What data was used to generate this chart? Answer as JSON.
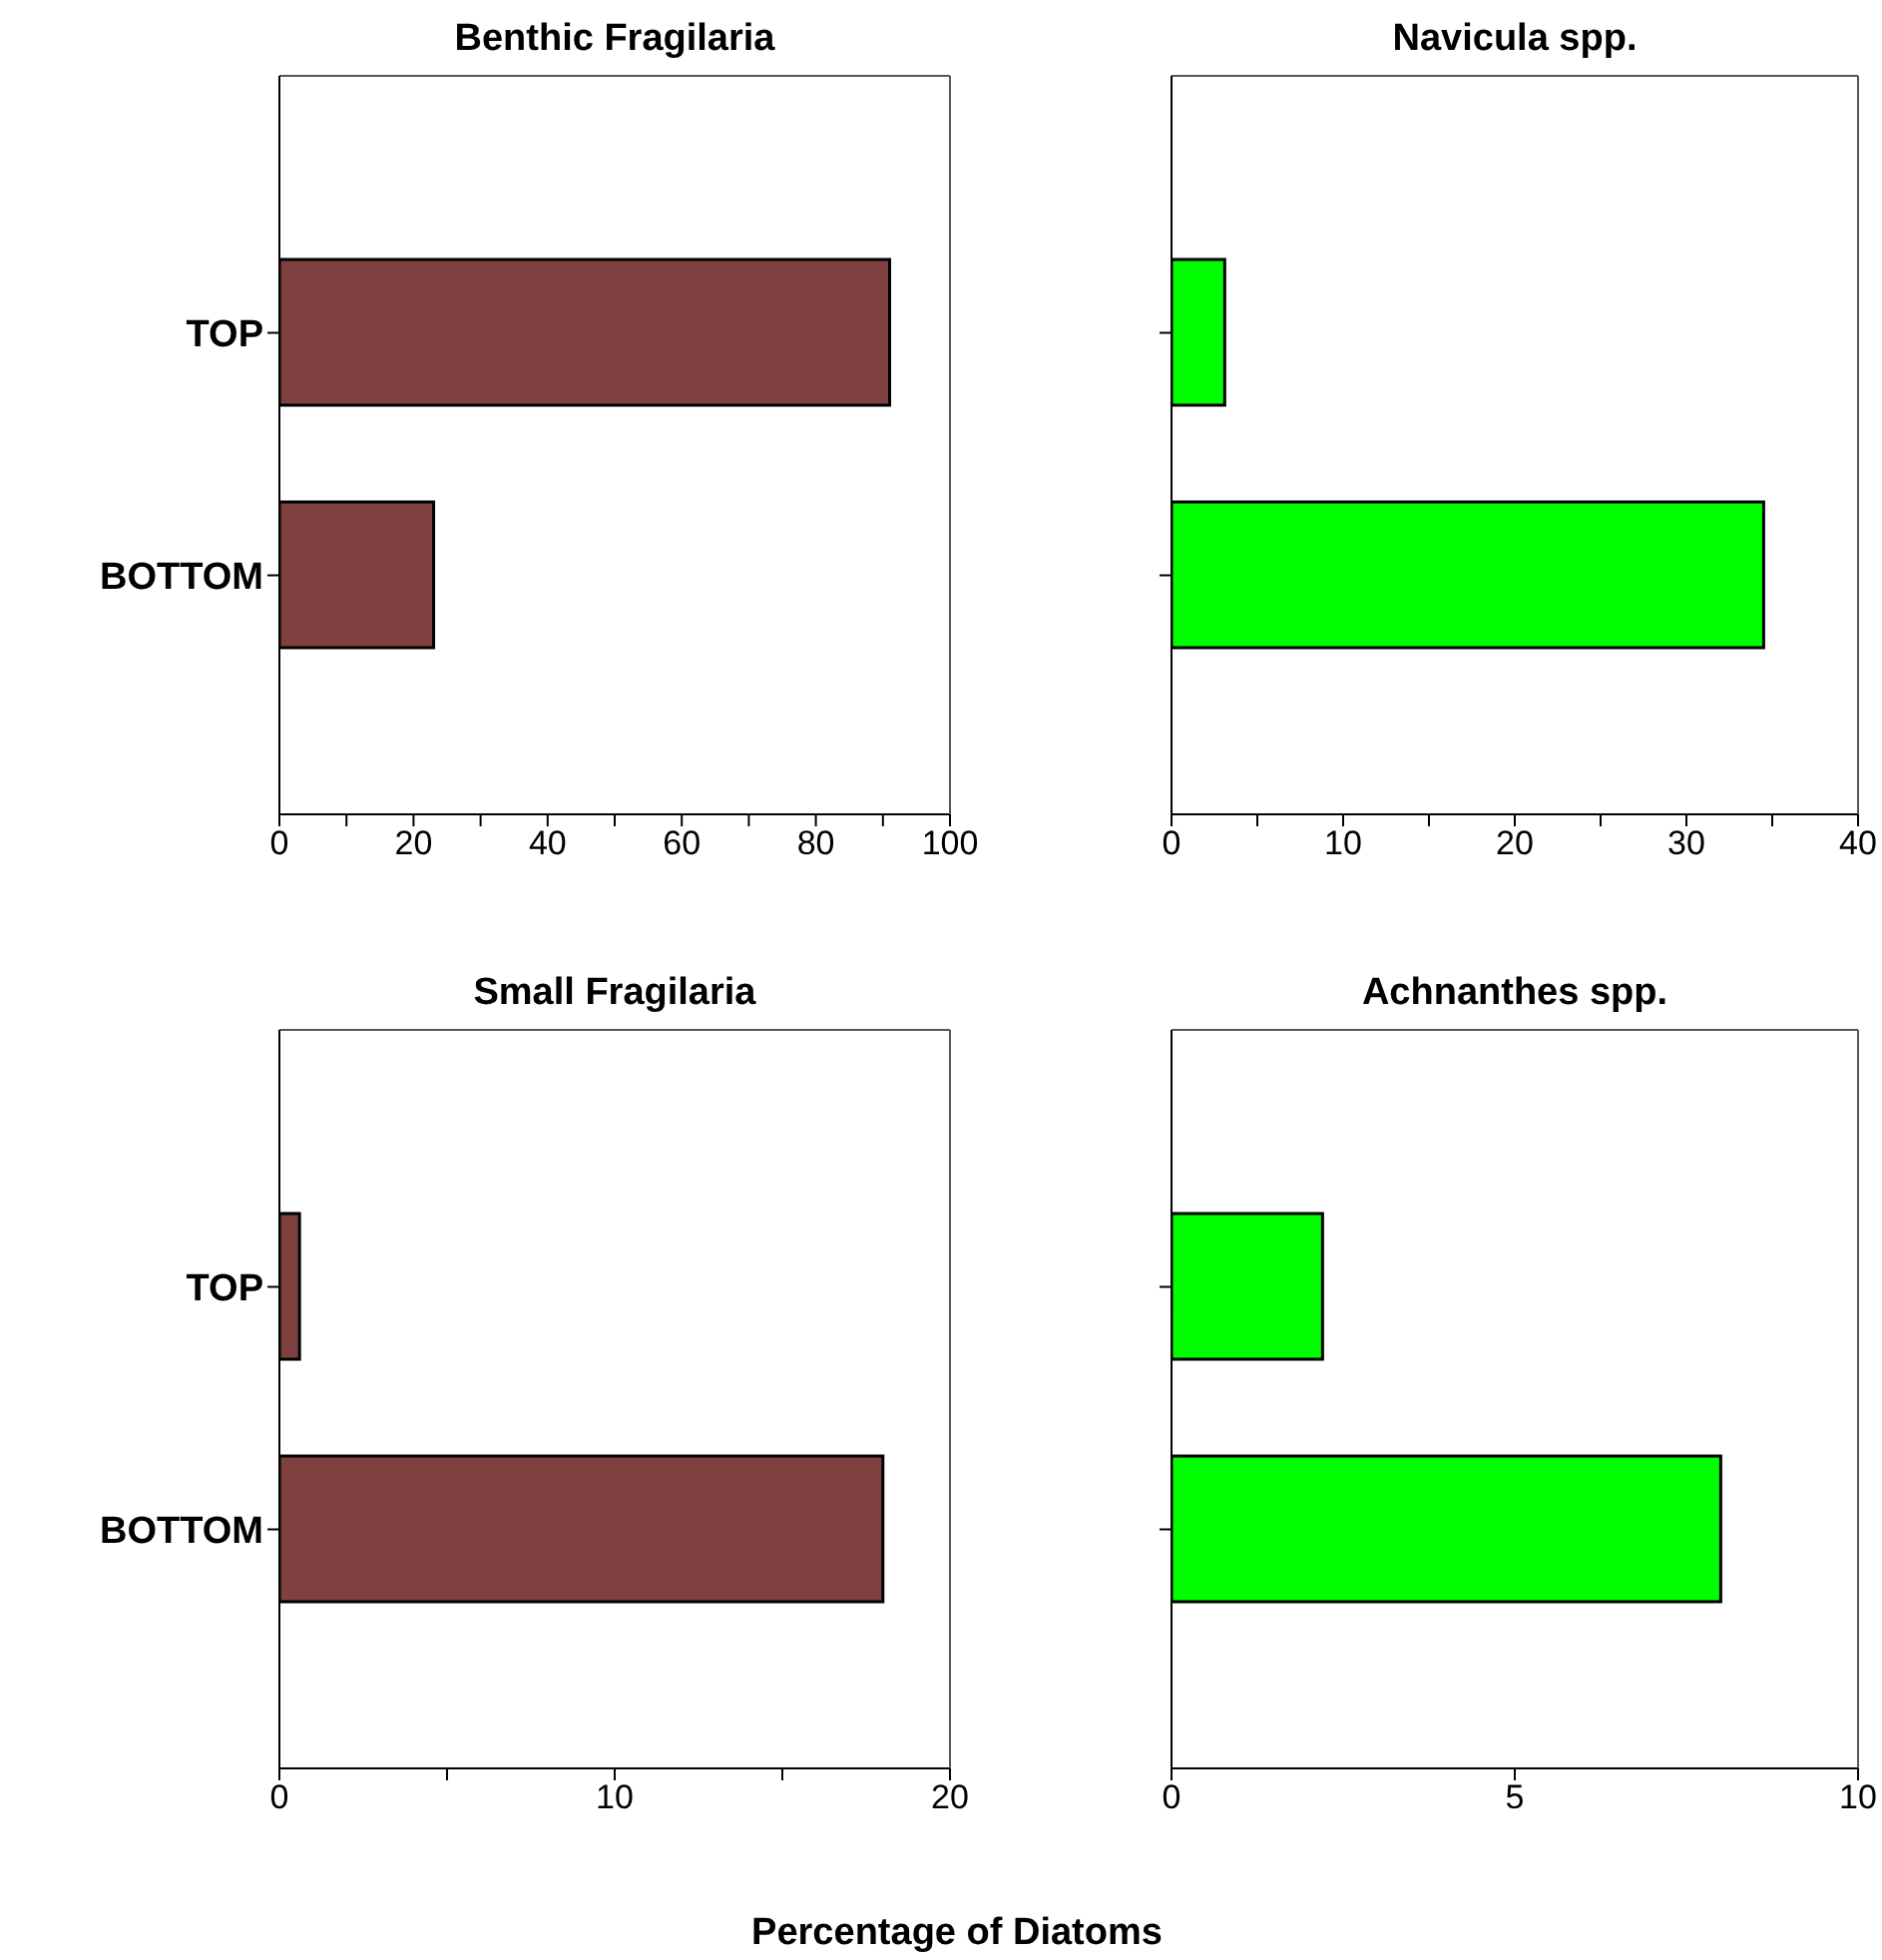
{
  "chart_data": [
    {
      "type": "bar",
      "orientation": "horizontal",
      "title": "Benthic Fragilaria",
      "categories": [
        "TOP",
        "BOTTOM"
      ],
      "values": [
        91,
        23
      ],
      "color": "#7f4040",
      "xlim": [
        0,
        100
      ],
      "xticks": [
        0,
        {
          "value": 10,
          "label": null
        },
        20,
        {
          "value": 30,
          "label": null
        },
        40,
        {
          "value": 50,
          "label": null
        },
        60,
        {
          "value": 70,
          "label": null
        },
        80,
        {
          "value": 90,
          "label": null
        },
        100
      ],
      "grid": false,
      "legend": false
    },
    {
      "type": "bar",
      "orientation": "horizontal",
      "title": "Navicula spp.",
      "categories": [
        null,
        null
      ],
      "values": [
        3.1,
        34.5
      ],
      "color": "#00ff00",
      "xlim": [
        0,
        40
      ],
      "xticks": [
        0,
        {
          "value": 5,
          "label": null
        },
        10,
        {
          "value": 15,
          "label": null
        },
        20,
        {
          "value": 25,
          "label": null
        },
        30,
        {
          "value": 35,
          "label": null
        },
        40
      ],
      "tick_labels": "x",
      "grid": false,
      "legend": false
    },
    {
      "type": "bar",
      "orientation": "horizontal",
      "title": "Small Fragilaria",
      "categories": [
        "TOP",
        "BOTTOM"
      ],
      "values": [
        0.6,
        18
      ],
      "color": "#7f4040",
      "xlim": [
        0,
        20
      ],
      "xticks": [
        0,
        {
          "value": 5,
          "label": null
        },
        10,
        {
          "value": 15,
          "label": null
        },
        20
      ],
      "grid": false,
      "legend": false
    },
    {
      "type": "bar",
      "orientation": "horizontal",
      "title": "Achnanthes spp.",
      "categories": [
        null,
        null
      ],
      "values": [
        2.2,
        8
      ],
      "color": "#00ff00",
      "xlim": [
        0,
        10
      ],
      "xticks": [
        0,
        5,
        10
      ],
      "tick_labels": "x",
      "xlabel": "Percentage of Diatoms",
      "grid": false,
      "legend": false
    }
  ]
}
